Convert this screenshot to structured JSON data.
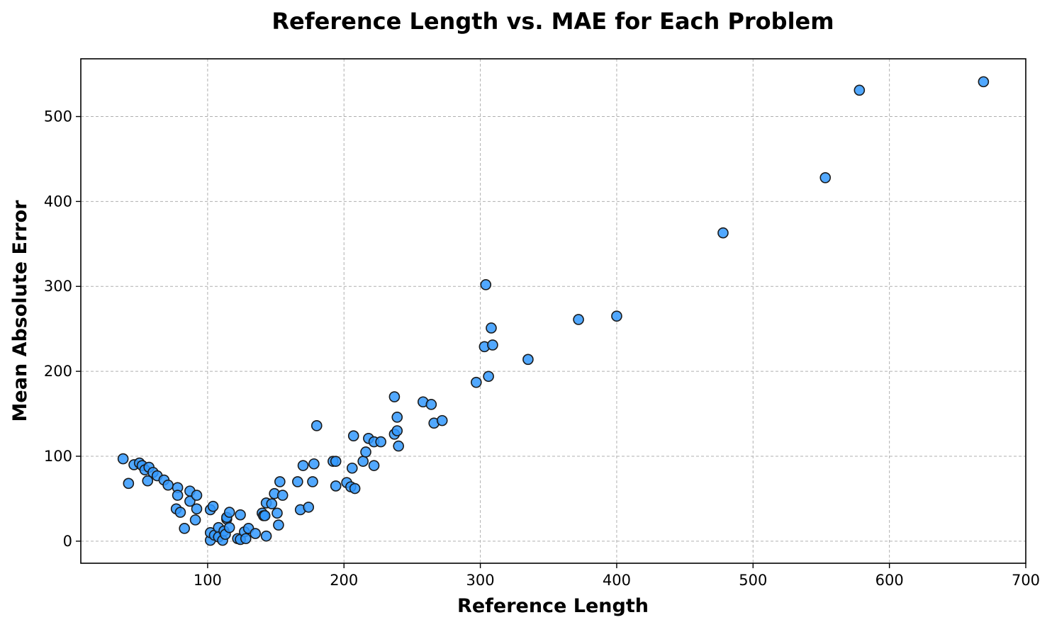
{
  "chart_data": {
    "type": "scatter",
    "title": "Reference Length vs. MAE for Each Problem",
    "xlabel": "Reference Length",
    "ylabel": "Mean Absolute Error",
    "xlim": [
      7,
      700
    ],
    "ylim": [
      -26,
      568
    ],
    "xticks": [
      100,
      200,
      300,
      400,
      500,
      600,
      700
    ],
    "yticks": [
      0,
      100,
      200,
      300,
      400,
      500
    ],
    "grid": true,
    "color": "#3399ff",
    "edge_color": "#1a1a1a",
    "points": [
      [
        38,
        97
      ],
      [
        42,
        68
      ],
      [
        46,
        90
      ],
      [
        50,
        92
      ],
      [
        52,
        89
      ],
      [
        54,
        84
      ],
      [
        56,
        71
      ],
      [
        57,
        87
      ],
      [
        60,
        81
      ],
      [
        63,
        77
      ],
      [
        68,
        72
      ],
      [
        71,
        66
      ],
      [
        78,
        63
      ],
      [
        78,
        54
      ],
      [
        77,
        38
      ],
      [
        80,
        34
      ],
      [
        83,
        15
      ],
      [
        87,
        59
      ],
      [
        87,
        47
      ],
      [
        91,
        25
      ],
      [
        92,
        38
      ],
      [
        92,
        54
      ],
      [
        102,
        37
      ],
      [
        104,
        41
      ],
      [
        102,
        1
      ],
      [
        102,
        10
      ],
      [
        105,
        7
      ],
      [
        108,
        16
      ],
      [
        108,
        5
      ],
      [
        111,
        1
      ],
      [
        112,
        12
      ],
      [
        113,
        8
      ],
      [
        114,
        26
      ],
      [
        114,
        28
      ],
      [
        116,
        34
      ],
      [
        116,
        16
      ],
      [
        122,
        3
      ],
      [
        124,
        31
      ],
      [
        124,
        2
      ],
      [
        127,
        11
      ],
      [
        128,
        3
      ],
      [
        130,
        15
      ],
      [
        135,
        9
      ],
      [
        140,
        33
      ],
      [
        141,
        30
      ],
      [
        142,
        30
      ],
      [
        143,
        45
      ],
      [
        143,
        6
      ],
      [
        147,
        44
      ],
      [
        149,
        56
      ],
      [
        151,
        33
      ],
      [
        152,
        19
      ],
      [
        153,
        70
      ],
      [
        155,
        54
      ],
      [
        166,
        70
      ],
      [
        168,
        37
      ],
      [
        170,
        89
      ],
      [
        174,
        40
      ],
      [
        177,
        70
      ],
      [
        178,
        91
      ],
      [
        180,
        136
      ],
      [
        192,
        94
      ],
      [
        194,
        94
      ],
      [
        194,
        65
      ],
      [
        202,
        69
      ],
      [
        205,
        64
      ],
      [
        206,
        86
      ],
      [
        207,
        124
      ],
      [
        208,
        62
      ],
      [
        214,
        94
      ],
      [
        216,
        105
      ],
      [
        218,
        121
      ],
      [
        222,
        117
      ],
      [
        222,
        89
      ],
      [
        227,
        117
      ],
      [
        237,
        170
      ],
      [
        237,
        126
      ],
      [
        239,
        146
      ],
      [
        239,
        130
      ],
      [
        240,
        112
      ],
      [
        258,
        164
      ],
      [
        264,
        161
      ],
      [
        266,
        139
      ],
      [
        272,
        142
      ],
      [
        297,
        187
      ],
      [
        303,
        229
      ],
      [
        304,
        302
      ],
      [
        306,
        194
      ],
      [
        308,
        251
      ],
      [
        309,
        231
      ],
      [
        335,
        214
      ],
      [
        372,
        261
      ],
      [
        400,
        265
      ],
      [
        478,
        363
      ],
      [
        553,
        428
      ],
      [
        578,
        531
      ],
      [
        669,
        541
      ]
    ]
  }
}
